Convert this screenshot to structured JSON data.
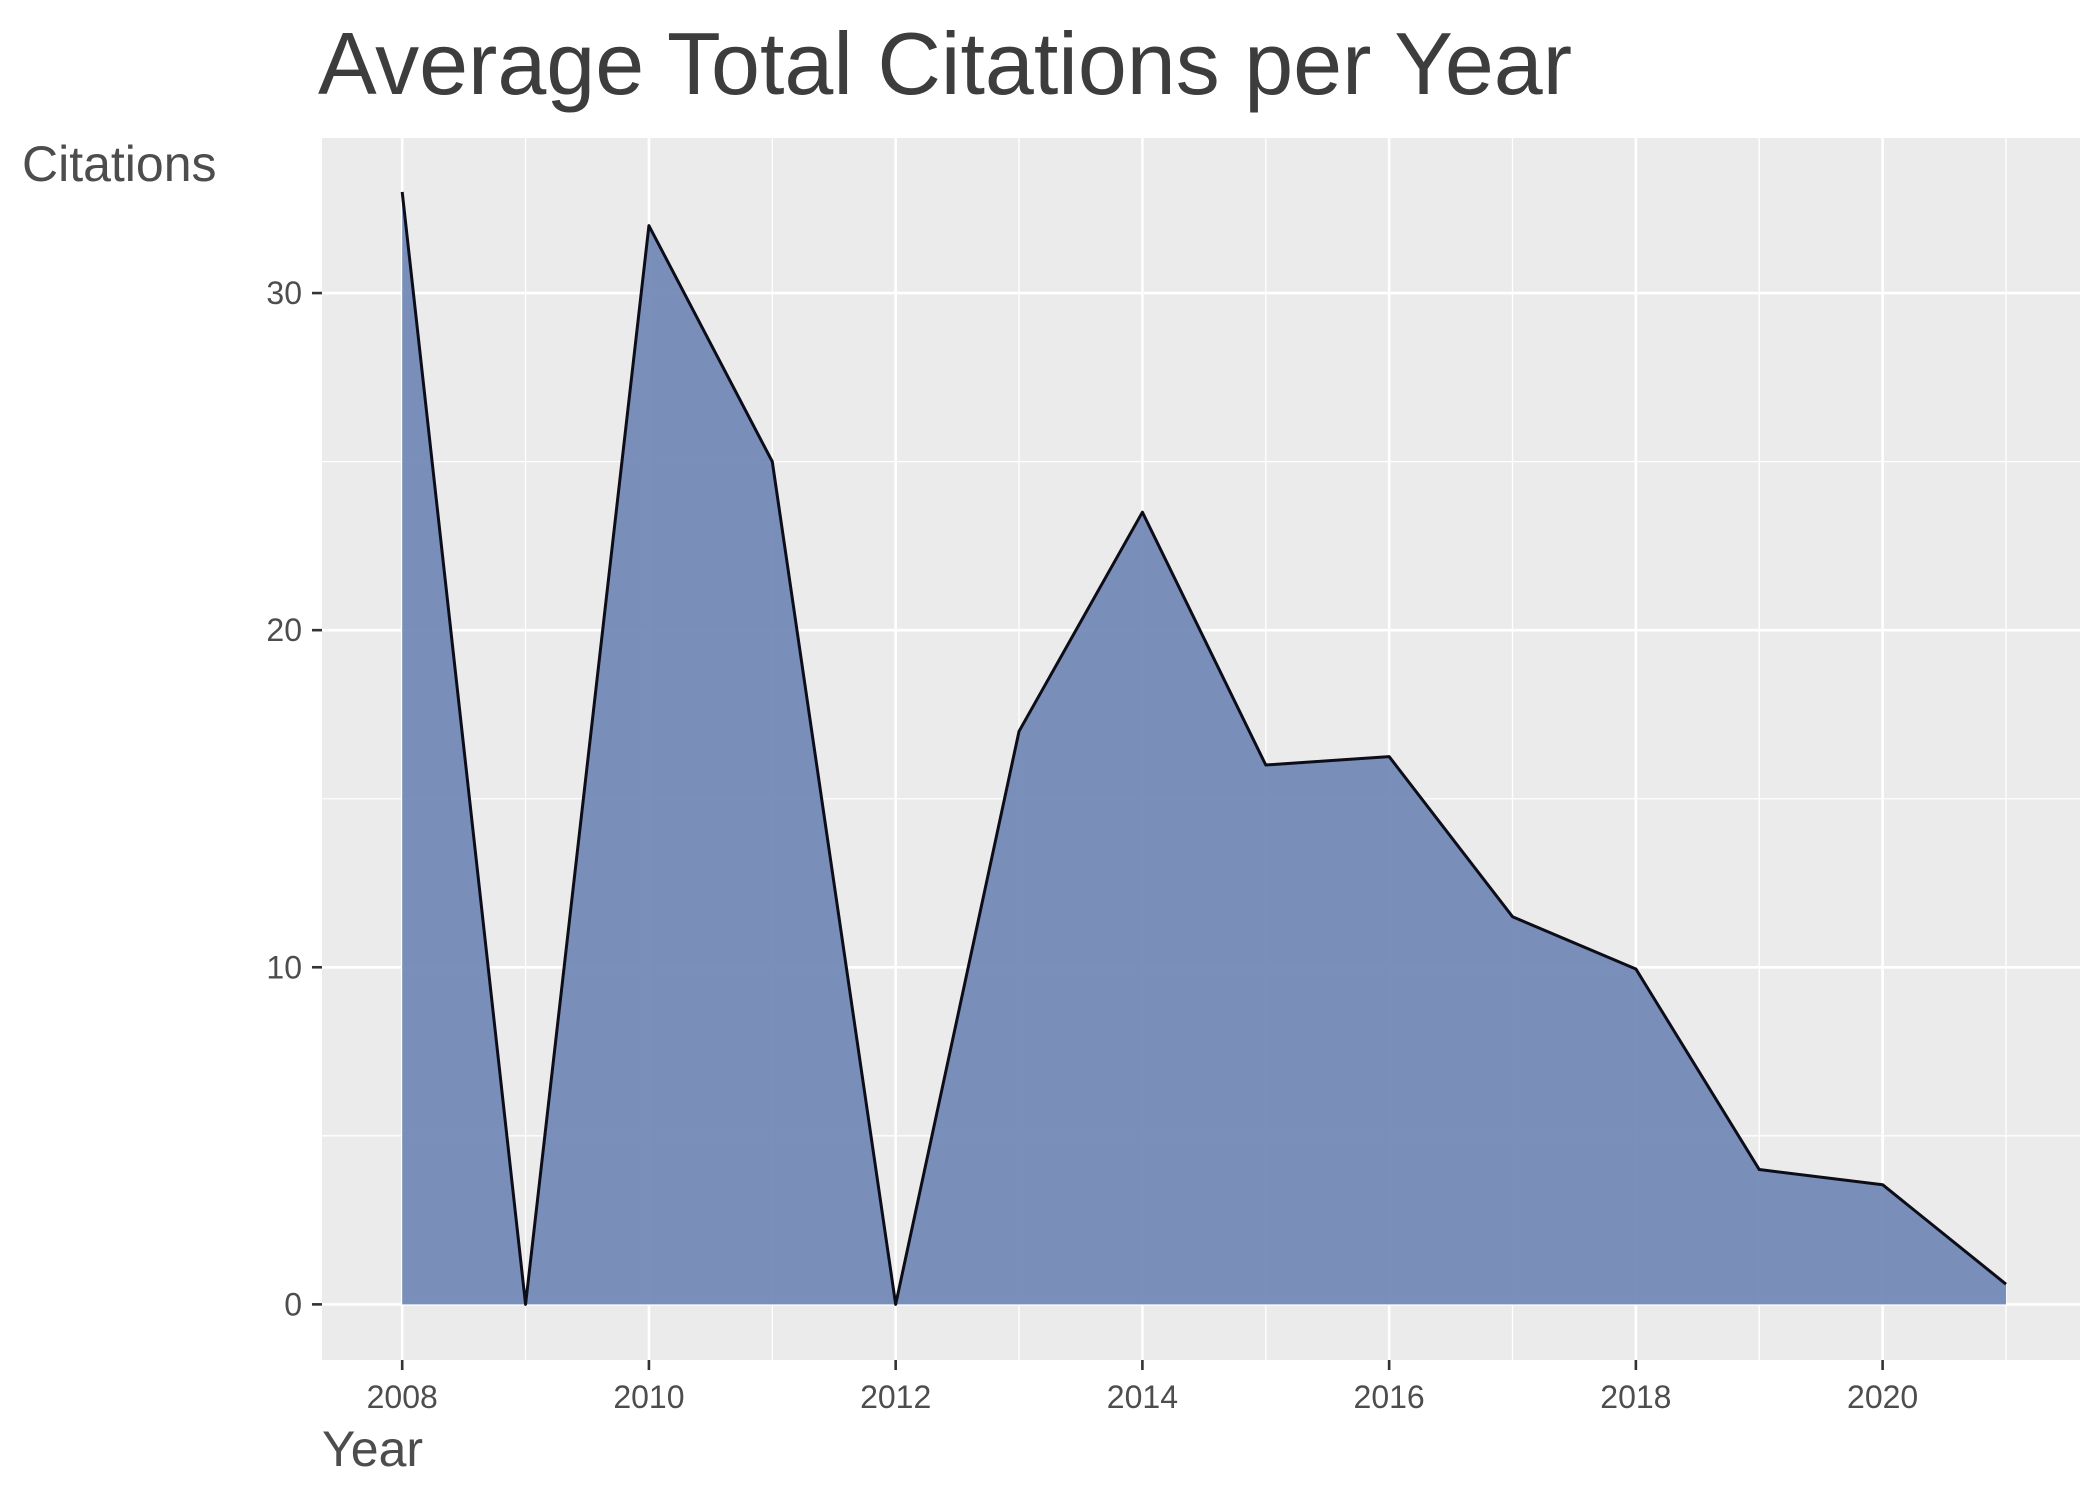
{
  "chart_data": {
    "type": "area",
    "title": "Average Total Citations per Year",
    "xlabel": "Year",
    "ylabel": "Citations",
    "x": [
      2008,
      2009,
      2010,
      2011,
      2012,
      2013,
      2014,
      2015,
      2016,
      2017,
      2018,
      2019,
      2020,
      2021
    ],
    "series": [
      {
        "values": [
          33,
          0,
          32,
          25,
          0,
          17,
          23.5,
          16,
          16.25,
          11.5,
          9.95,
          4,
          3.55,
          0.6
        ]
      }
    ],
    "xlim": [
      2007.35,
      2021.6
    ],
    "ylim": [
      -1.65,
      34.6
    ],
    "x_ticks": [
      2008,
      2010,
      2012,
      2014,
      2016,
      2018,
      2020
    ],
    "y_ticks": [
      0,
      10,
      20,
      30
    ],
    "grid": true,
    "colors": {
      "panel": "#ebebeb",
      "grid": "#ffffff",
      "fill": "#6f87b4",
      "line": "#0d0d1a",
      "text": "#4d4d4d",
      "title": "#3d3d3d"
    }
  }
}
